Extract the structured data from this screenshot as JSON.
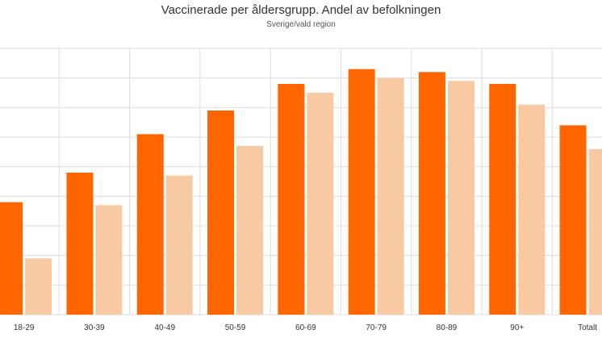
{
  "chart_data": {
    "type": "bar",
    "title": "Vaccinerade per åldersgrupp. Andel av befolkningen",
    "subtitle": "Sverige/vald region",
    "categories": [
      "18-29",
      "30-39",
      "40-49",
      "50-59",
      "60-69",
      "70-79",
      "80-89",
      "90+",
      "Totalt"
    ],
    "series": [
      {
        "values": [
          38,
          48,
          61,
          69,
          78,
          83,
          82,
          78,
          64
        ],
        "color": "#ff6600"
      },
      {
        "values": [
          19,
          37,
          47,
          57,
          75,
          80,
          79,
          71,
          56
        ],
        "color": "#f8caa4"
      }
    ],
    "ylim": [
      0,
      90
    ],
    "grid": true,
    "legend": "none"
  }
}
